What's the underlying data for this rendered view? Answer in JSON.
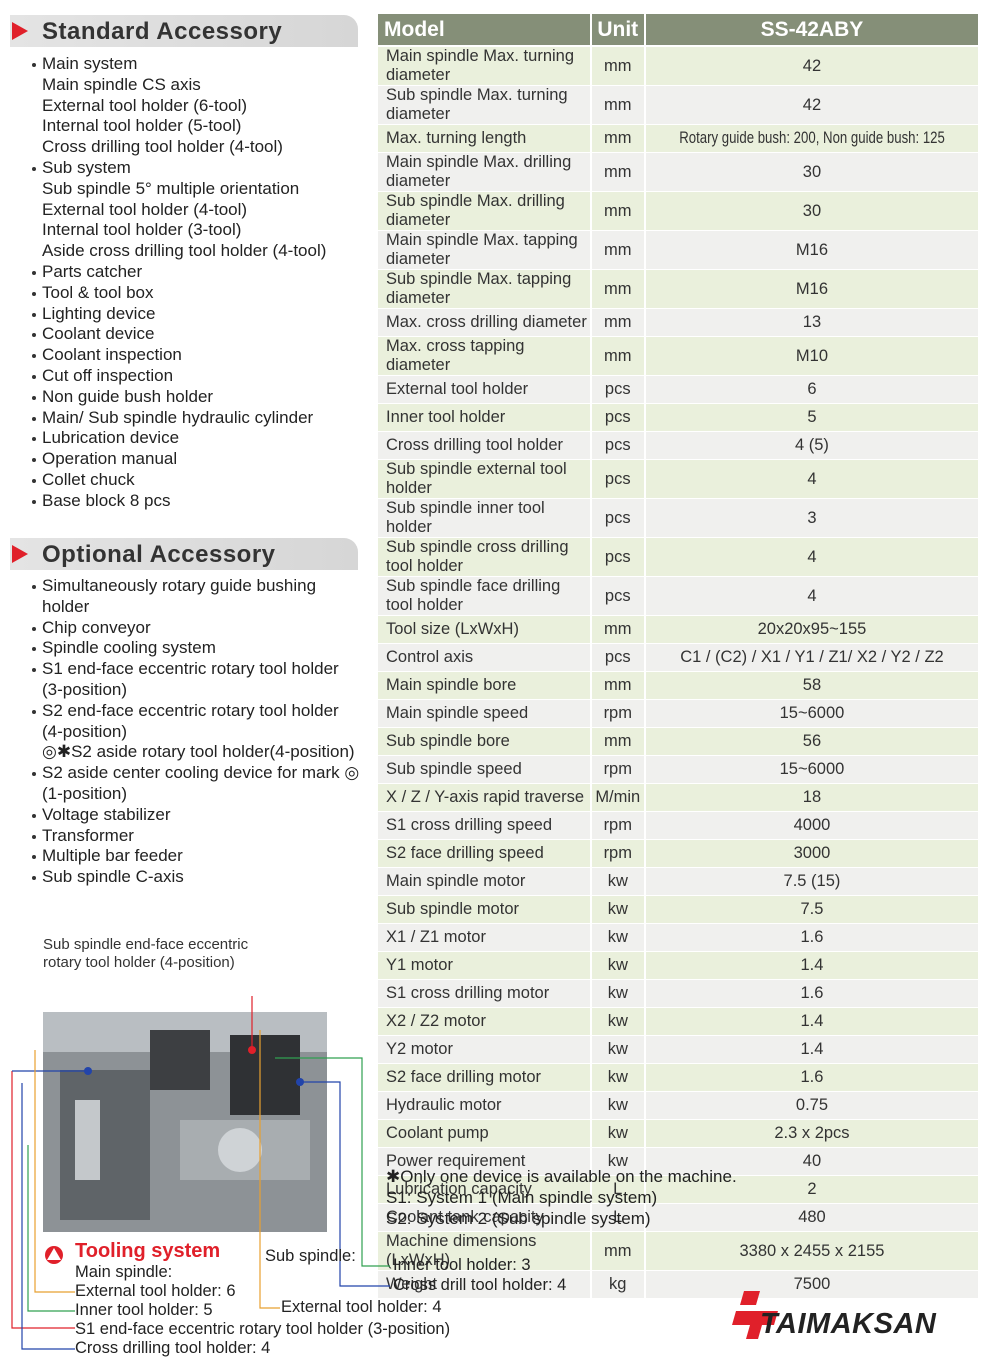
{
  "standard_accessory": {
    "title": "Standard Accessory",
    "items": [
      {
        "label": "Main system",
        "children": [
          "Main spindle CS axis",
          "External tool holder (6-tool)",
          "Internal tool holder (5-tool)",
          "Cross drilling tool holder (4-tool)"
        ]
      },
      {
        "label": "Sub system",
        "children": [
          "Sub spindle 5° multiple orientation",
          "External tool holder (4-tool)",
          "Internal tool holder (3-tool)",
          "Aside cross drilling tool holder (4-tool)"
        ]
      },
      {
        "label": "Parts catcher"
      },
      {
        "label": "Tool & tool box"
      },
      {
        "label": "Lighting device"
      },
      {
        "label": "Coolant device"
      },
      {
        "label": "Coolant inspection"
      },
      {
        "label": "Cut off inspection"
      },
      {
        "label": "Non guide bush holder"
      },
      {
        "label": "Main/ Sub spindle hydraulic cylinder"
      },
      {
        "label": "Lubrication device"
      },
      {
        "label": "Operation manual"
      },
      {
        "label": "Collet chuck"
      },
      {
        "label": "Base block 8 pcs"
      }
    ]
  },
  "optional_accessory": {
    "title": "Optional Accessory",
    "items": [
      {
        "label": "Simultaneously rotary guide bushing holder"
      },
      {
        "label": "Chip conveyor"
      },
      {
        "label": "Spindle cooling system"
      },
      {
        "label": "S1 end-face eccentric rotary tool holder (3-position)"
      },
      {
        "label": "S2 end-face eccentric rotary tool holder (4-position)",
        "children": [
          "◎✱S2 aside rotary tool holder(4-position)"
        ]
      },
      {
        "label": "S2 aside center cooling device for mark ◎ (1-position)"
      },
      {
        "label": "Voltage stabilizer"
      },
      {
        "label": "Transformer"
      },
      {
        "label": "Multiple bar feeder"
      },
      {
        "label": "Sub spindle C-axis"
      }
    ]
  },
  "table": {
    "header": [
      "Model",
      "Unit",
      "SS-42ABY"
    ],
    "rows": [
      [
        "Main spindle Max. turning diameter",
        "mm",
        "42"
      ],
      [
        "Sub spindle Max. turning diameter",
        "mm",
        "42"
      ],
      [
        "Max. turning length",
        "mm",
        "Rotary guide bush: 200, Non guide bush: 125"
      ],
      [
        "Main spindle Max. drilling diameter",
        "mm",
        "30"
      ],
      [
        "Sub spindle Max. drilling diameter",
        "mm",
        "30"
      ],
      [
        "Main spindle Max. tapping diameter",
        "mm",
        "M16"
      ],
      [
        "Sub spindle Max. tapping diameter",
        "mm",
        "M16"
      ],
      [
        "Max. cross drilling diameter",
        "mm",
        "13"
      ],
      [
        "Max. cross tapping diameter",
        "mm",
        "M10"
      ],
      [
        "External tool holder",
        "pcs",
        "6"
      ],
      [
        "Inner tool holder",
        "pcs",
        "5"
      ],
      [
        "Cross drilling tool holder",
        "pcs",
        "4 (5)"
      ],
      [
        "Sub spindle external tool holder",
        "pcs",
        "4"
      ],
      [
        "Sub spindle inner tool holder",
        "pcs",
        "3"
      ],
      [
        "Sub spindle cross drilling tool holder",
        "pcs",
        "4"
      ],
      [
        "Sub spindle face drilling tool holder",
        "pcs",
        "4"
      ],
      [
        "Tool size (LxWxH)",
        "mm",
        "20x20x95~155"
      ],
      [
        "Control axis",
        "pcs",
        "C1 / (C2) / X1 / Y1 / Z1/ X2 / Y2 / Z2"
      ],
      [
        "Main spindle bore",
        "mm",
        "58"
      ],
      [
        "Main spindle speed",
        "rpm",
        "15~6000"
      ],
      [
        "Sub spindle bore",
        "mm",
        "56"
      ],
      [
        "Sub  spindle speed",
        "rpm",
        "15~6000"
      ],
      [
        "X / Z / Y-axis rapid traverse",
        "M/min",
        "18"
      ],
      [
        "S1 cross drilling speed",
        "rpm",
        "4000"
      ],
      [
        "S2 face drilling speed",
        "rpm",
        "3000"
      ],
      [
        "Main spindle motor",
        "kw",
        "7.5 (15)"
      ],
      [
        "Sub spindle motor",
        "kw",
        "7.5"
      ],
      [
        "X1 / Z1 motor",
        "kw",
        "1.6"
      ],
      [
        "Y1 motor",
        "kw",
        "1.4"
      ],
      [
        "S1 cross drilling motor",
        "kw",
        "1.6"
      ],
      [
        "X2 / Z2 motor",
        "kw",
        "1.4"
      ],
      [
        "Y2 motor",
        "kw",
        "1.4"
      ],
      [
        "S2 face drilling motor",
        "kw",
        "1.6"
      ],
      [
        "Hydraulic motor",
        "kw",
        "0.75"
      ],
      [
        "Coolant pump",
        "kw",
        "2.3 x 2pcs"
      ],
      [
        "Power requirement",
        "kw",
        "40"
      ],
      [
        "Lubrication capacity",
        "L",
        "2"
      ],
      [
        "Coolant tank capacity",
        "L",
        "480"
      ],
      [
        "Machine dimensions (LxWxH)",
        "mm",
        "3380 x 2455 x 2155"
      ],
      [
        "Weight",
        "kg",
        "7500"
      ]
    ]
  },
  "notes": [
    "✱Only one device is available on the machine.",
    "S1: System 1 (Main spindle system)",
    "S2: System 2 (Sub spindle system)"
  ],
  "photo_callout": "Sub spindle end-face eccentric rotary tool holder (4-position)",
  "tooling_system": {
    "title": "Tooling system",
    "main_spindle": {
      "label": "Main spindle:",
      "items": [
        "External tool holder: 6",
        "Inner tool holder: 5",
        "S1 end-face eccentric rotary tool holder (3-position)",
        "Cross drilling tool holder: 4"
      ]
    },
    "sub_spindle": {
      "label": "Sub spindle:",
      "items": [
        "Inner tool holder: 3",
        "Cross drill tool holder: 4",
        "External tool holder: 4"
      ]
    }
  },
  "logo": "TAIMAKSAN"
}
